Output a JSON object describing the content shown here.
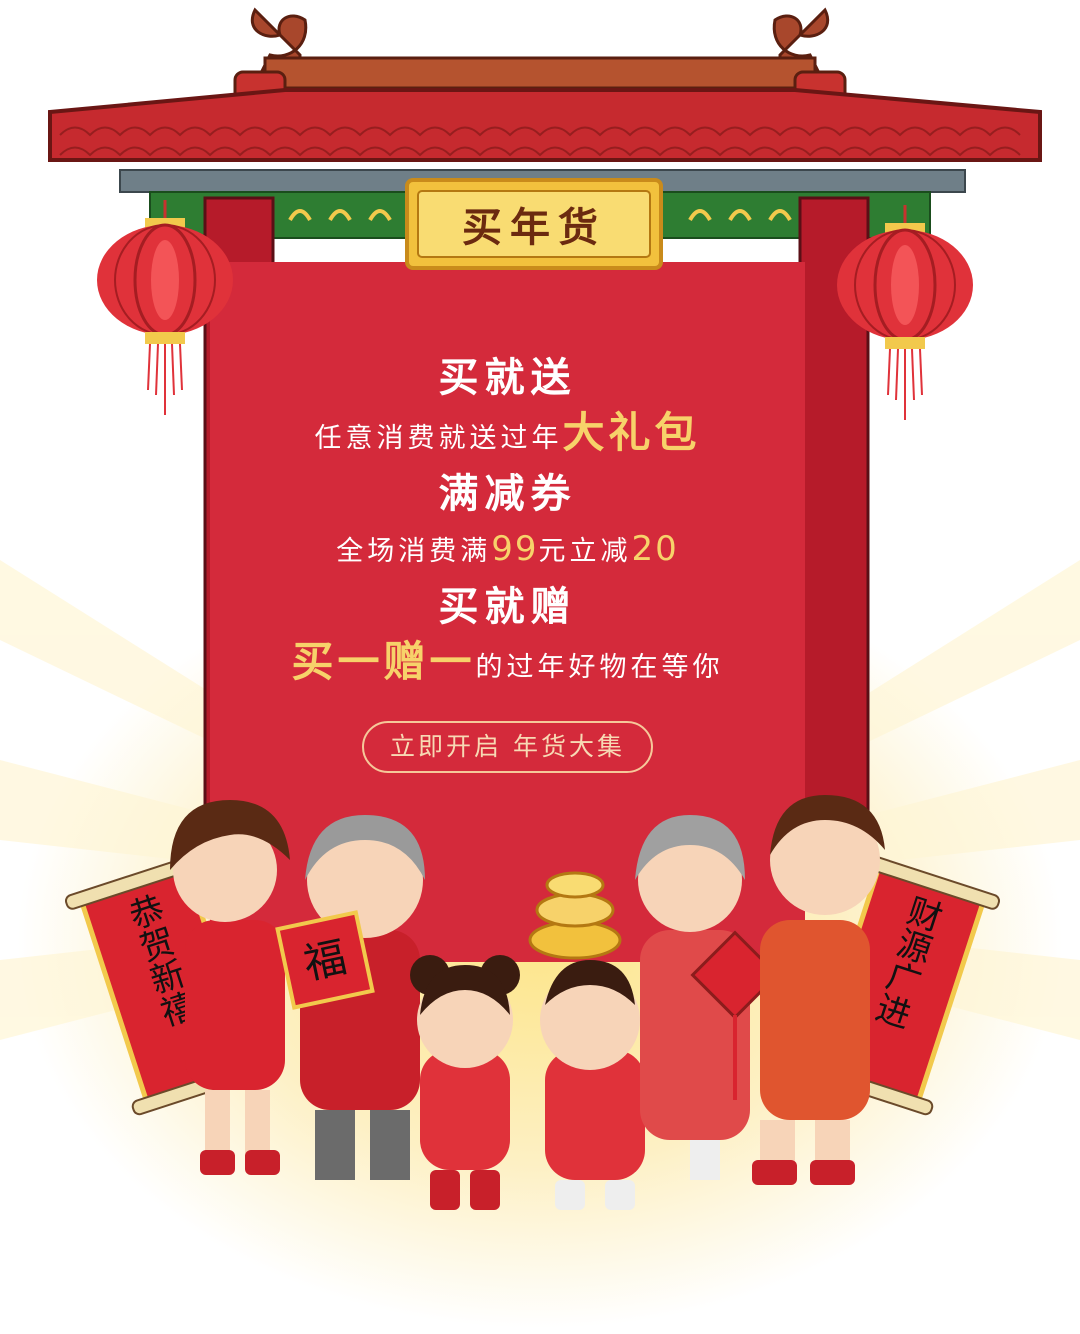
{
  "sign": {
    "title": "买年货"
  },
  "promo": {
    "section1_title": "买就送",
    "section1_desc_pre": "任意消费就送过年",
    "section1_desc_highlight": "大礼包",
    "section2_title": "满减券",
    "section2_desc_a": "全场消费满",
    "section2_desc_num1": "99",
    "section2_desc_b": "元立减",
    "section2_desc_num2": "20",
    "section3_title": "买就赠",
    "section3_desc_highlight": "买一赠一",
    "section3_desc_post": "的过年好物在等你",
    "cta_label": "立即开启 年货大集"
  },
  "scrolls": {
    "left": "恭贺新禧",
    "right": "财源广进",
    "fu": "福"
  },
  "colors": {
    "panel": "#d42a3b",
    "pillar": "#b61b2a",
    "roof": "#c62a2f",
    "gold": "#f7d26a",
    "eave_green": "#2e7d32"
  }
}
